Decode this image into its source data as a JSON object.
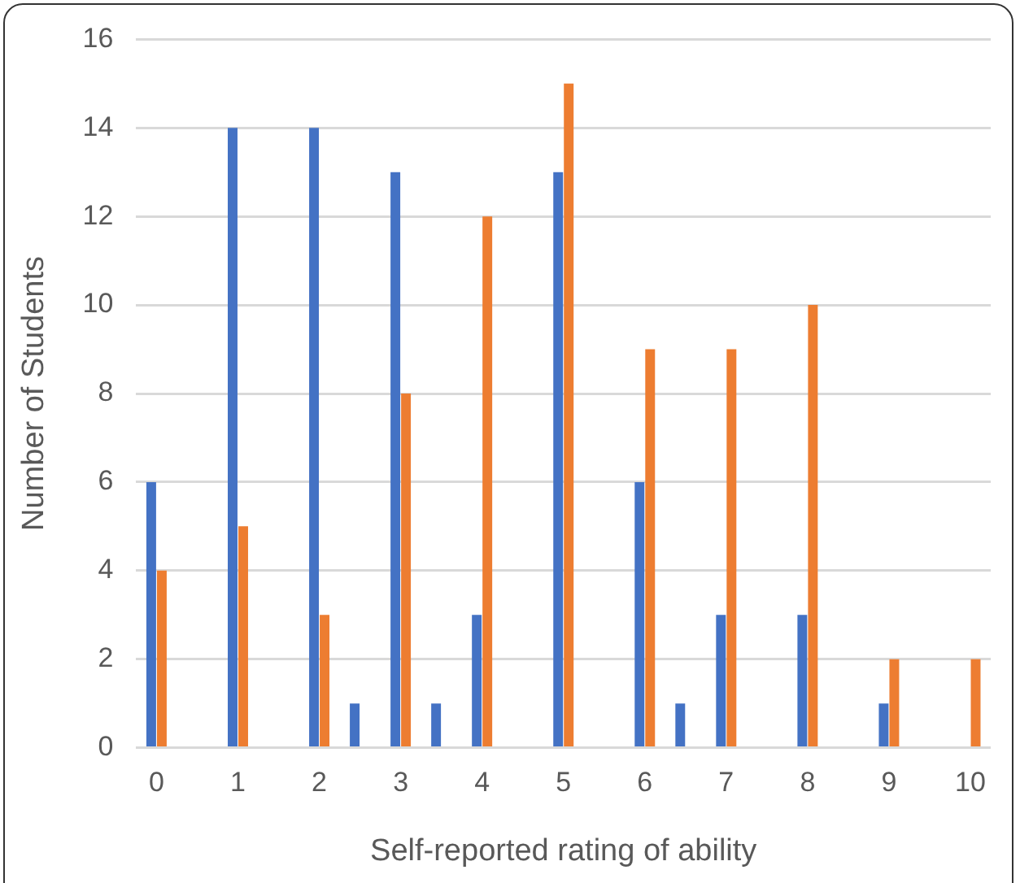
{
  "chart_data": {
    "type": "bar",
    "xlabel": "Self-reported rating of ability",
    "ylabel": "Number of Students",
    "categories": [
      "0",
      null,
      "1",
      null,
      "2",
      null,
      "3",
      null,
      "4",
      null,
      "5",
      null,
      "6",
      null,
      "7",
      null,
      "8",
      null,
      "9",
      null,
      "10"
    ],
    "series": [
      {
        "color": "#4472c4",
        "values": [
          6,
          null,
          14,
          null,
          14,
          1,
          13,
          1,
          3,
          null,
          13,
          null,
          6,
          1,
          3,
          null,
          3,
          null,
          1,
          null,
          null
        ]
      },
      {
        "color": "#ed7d31",
        "values": [
          4,
          null,
          5,
          null,
          3,
          null,
          8,
          null,
          12,
          null,
          15,
          null,
          9,
          null,
          9,
          null,
          10,
          null,
          2,
          null,
          2
        ]
      }
    ],
    "ylim": [
      0,
      16
    ],
    "yticks": [
      0,
      2,
      4,
      6,
      8,
      10,
      12,
      14,
      16
    ],
    "grid": "y",
    "legend": false
  }
}
